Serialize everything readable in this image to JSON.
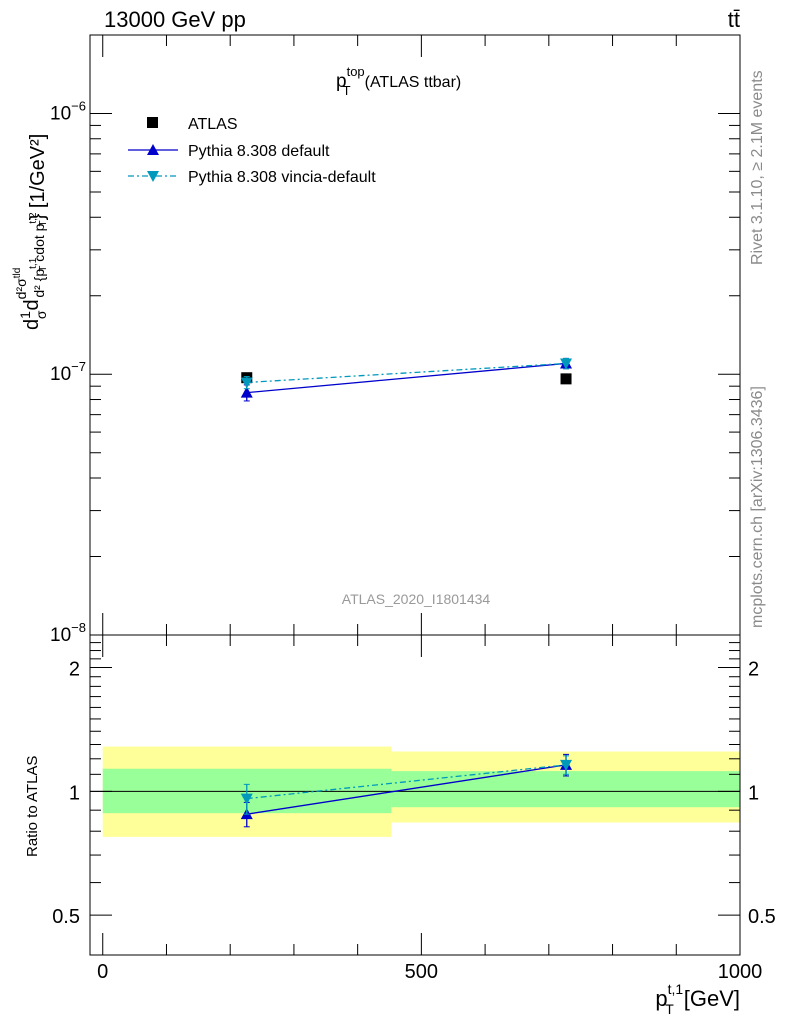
{
  "header": {
    "left": "13000 GeV pp",
    "right": "tt̄"
  },
  "side_labels": {
    "rivet": "Rivet 3.1.10, ≥ 2.1M events",
    "mcplots": "mcplots.cern.ch [arXiv:1306.3436]"
  },
  "chart_data": [
    {
      "type": "line",
      "title_main": "p",
      "title_sup": "top",
      "title_sub": "T",
      "title_rest": "(ATLAS ttbar)",
      "analysis_label": "ATLAS_2020_I1801434",
      "ylabel": "d²σ/d² {p_T^t,1 cdot p_T^t,2} (1/σ) [1/GeV²]",
      "yscale": "log",
      "ylim": [
        1e-08,
        2e-06
      ],
      "xlim": [
        -20,
        1000
      ],
      "y_ticks": [
        {
          "value": 1e-06,
          "label_base": "10",
          "label_exp": "−6"
        },
        {
          "value": 1e-07,
          "label_base": "10",
          "label_exp": "−7"
        },
        {
          "value": 1e-08,
          "label_base": "10",
          "label_exp": "−8"
        }
      ],
      "legend_position": "top-left",
      "series": [
        {
          "name": "ATLAS",
          "marker": "square",
          "color": "#000000",
          "x": [
            226,
            727
          ],
          "y": [
            9.7e-08,
            9.6e-08
          ]
        },
        {
          "name": "Pythia 8.308 default",
          "marker": "triangle-up",
          "color": "#0000cc",
          "x": [
            226,
            727
          ],
          "y": [
            8.5e-08,
            1.1e-07
          ],
          "yerr": [
            6e-09,
            5e-09
          ]
        },
        {
          "name": "Pythia 8.308 vincia-default",
          "marker": "triangle-down",
          "color": "#0099bb",
          "x": [
            226,
            727
          ],
          "y": [
            9.3e-08,
            1.1e-07
          ],
          "yerr": [
            5e-09,
            5e-09
          ]
        }
      ]
    },
    {
      "type": "line",
      "ylabel": "Ratio to ATLAS",
      "xlabel_main": "p",
      "xlabel_sup": "t,1",
      "xlabel_sub": "T",
      "xlabel_unit": "[GeV]",
      "ylim": [
        0.4,
        2.4
      ],
      "xlim": [
        -20,
        1000
      ],
      "x_ticks": [
        0,
        500,
        1000
      ],
      "y_ticks": [
        0.5,
        1,
        2
      ],
      "bands": [
        {
          "x0": 0,
          "x1": 453,
          "inner": [
            0.885,
            1.135
          ],
          "outer": [
            0.775,
            1.285
          ]
        },
        {
          "x0": 453,
          "x1": 1000,
          "inner": [
            0.915,
            1.12
          ],
          "outer": [
            0.84,
            1.25
          ]
        }
      ],
      "band_colors": {
        "inner": "#99ff99",
        "outer": "#ffff99"
      },
      "series": [
        {
          "name": "Pythia 8.308 default",
          "marker": "triangle-up",
          "color": "#0000cc",
          "x": [
            226,
            727
          ],
          "y": [
            0.88,
            1.16
          ],
          "yerr": [
            0.06,
            0.07
          ]
        },
        {
          "name": "Pythia 8.308 vincia-default",
          "marker": "triangle-down",
          "color": "#0099bb",
          "x": [
            226,
            727
          ],
          "y": [
            0.96,
            1.16
          ],
          "yerr": [
            0.08,
            0.06
          ]
        }
      ]
    }
  ]
}
